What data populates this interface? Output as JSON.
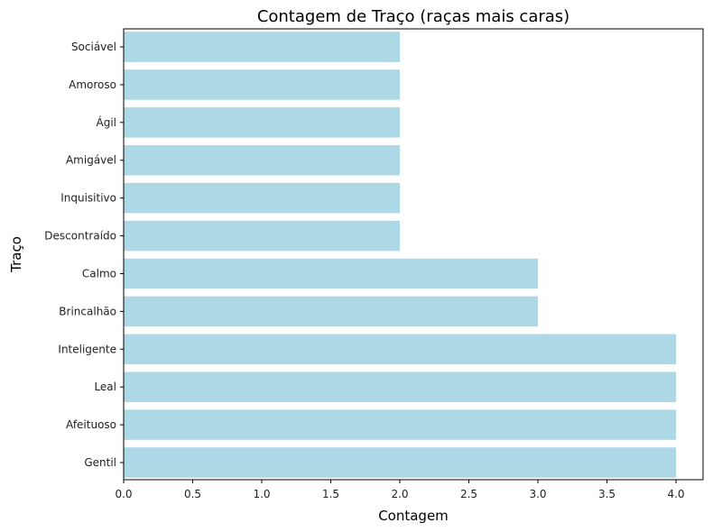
{
  "chart_data": {
    "type": "bar",
    "orientation": "horizontal",
    "title": "Contagem de Traço (raças mais caras)",
    "xlabel": "Contagem",
    "ylabel": "Traço",
    "categories": [
      "Gentil",
      "Afeituoso",
      "Leal",
      "Inteligente",
      "Brincalhão",
      "Calmo",
      "Descontraído",
      "Inquisitivo",
      "Amigável",
      "Ágil",
      "Amoroso",
      "Sociável"
    ],
    "values": [
      4,
      4,
      4,
      4,
      3,
      3,
      2,
      2,
      2,
      2,
      2,
      2
    ],
    "xlim": [
      0,
      4.1
    ],
    "xticks": [
      "0.0",
      "0.5",
      "1.0",
      "1.5",
      "2.0",
      "2.5",
      "3.0",
      "3.5",
      "4.0"
    ],
    "bar_color": "#add8e6",
    "grid": false,
    "legend": "none"
  }
}
